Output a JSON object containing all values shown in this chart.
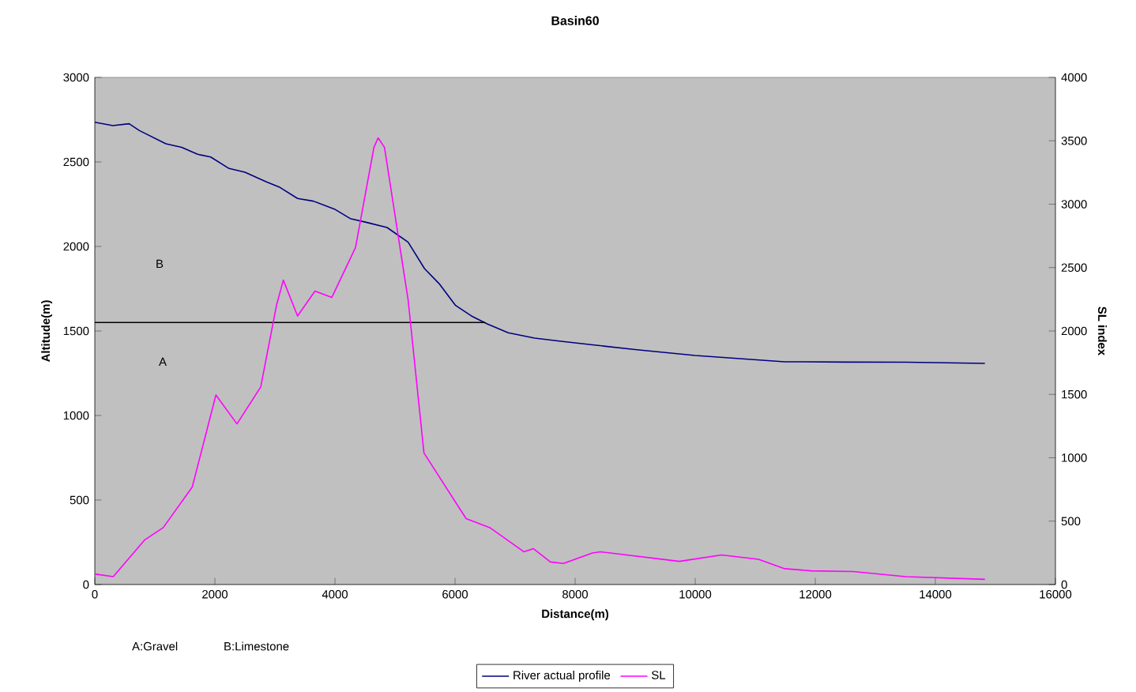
{
  "chart_data": {
    "type": "line",
    "title": "Basin60",
    "xlabel": "Distance(m)",
    "ylabel": "Altitude(m)",
    "y2label": "SL index",
    "xlim": [
      0,
      16000
    ],
    "xticks": [
      0,
      2000,
      4000,
      6000,
      8000,
      10000,
      12000,
      14000,
      16000
    ],
    "ylim": [
      0,
      3000
    ],
    "yticks": [
      0,
      500,
      1000,
      1500,
      2000,
      2500,
      3000
    ],
    "y2lim": [
      0,
      4000
    ],
    "y2ticks": [
      0,
      500,
      1000,
      1500,
      2000,
      2500,
      3000,
      3500,
      4000
    ],
    "legend": "bottom",
    "grid": false,
    "marker": "none",
    "series": [
      {
        "name": "River actual profile",
        "color": "#000080",
        "x": [
          0,
          300,
          571,
          745,
          1184,
          1447,
          1711,
          1930,
          2237,
          2500,
          2851,
          3070,
          3377,
          3640,
          3991,
          4254,
          4518,
          4868,
          5219,
          5491,
          5745,
          6009,
          6272,
          6535,
          6886,
          7325,
          7763,
          8289,
          9000,
          10000,
          11491,
          12500,
          13509,
          14825
        ],
        "values": [
          2735,
          2715,
          2726,
          2685,
          2607,
          2586,
          2545,
          2529,
          2461,
          2439,
          2383,
          2352,
          2284,
          2268,
          2221,
          2165,
          2143,
          2112,
          2025,
          1869,
          1776,
          1651,
          1589,
          1542,
          1489,
          1458,
          1439,
          1418,
          1390,
          1355,
          1318,
          1316,
          1315,
          1308
        ]
      },
      {
        "name": "SL",
        "color": "#ff00ff",
        "axis": "y2",
        "x": [
          0,
          307,
          833,
          1140,
          1623,
          2017,
          2368,
          2763,
          3026,
          3140,
          3377,
          3667,
          3947,
          4342,
          4649,
          4719,
          4825,
          5219,
          5482,
          6184,
          6579,
          7149,
          7307,
          7588,
          7807,
          8289,
          8421,
          9737,
          10439,
          11053,
          11491,
          11930,
          12632,
          13509,
          14825
        ],
        "values": [
          83,
          62,
          353,
          449,
          769,
          1495,
          1267,
          1558,
          2202,
          2401,
          2118,
          2314,
          2264,
          2658,
          3448,
          3523,
          3448,
          2243,
          1038,
          520,
          449,
          258,
          283,
          178,
          166,
          249,
          258,
          183,
          233,
          199,
          125,
          108,
          103,
          62,
          41
        ]
      },
      {
        "type": "line",
        "color": "#000000",
        "x": [
          0,
          6500
        ],
        "values": [
          1550,
          1550
        ]
      }
    ],
    "annotations": [
      "B",
      "A",
      "A:Gravel",
      "B:Limestone"
    ]
  }
}
